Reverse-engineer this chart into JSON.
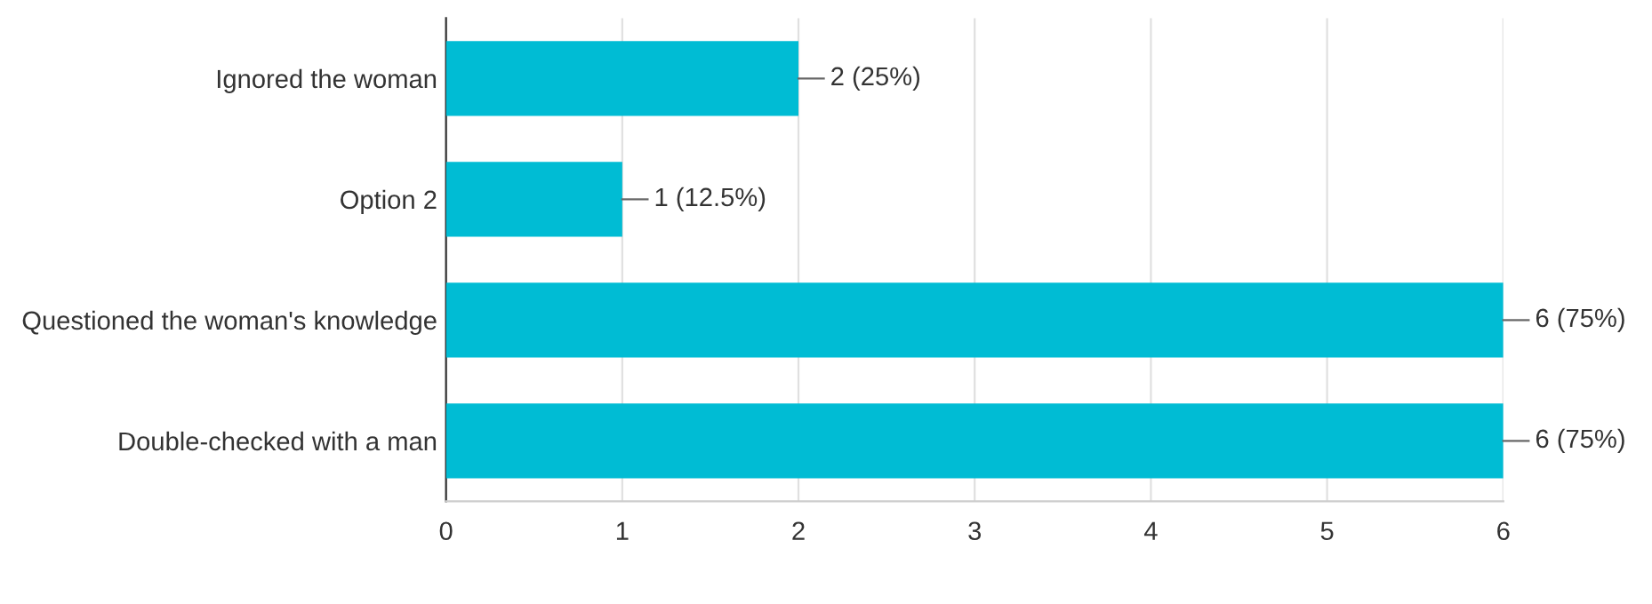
{
  "chart_data": {
    "type": "bar",
    "orientation": "horizontal",
    "categories": [
      "Ignored the woman",
      "Option 2",
      "Questioned the woman's knowledge",
      "Double-checked with a man"
    ],
    "values": [
      2,
      1,
      6,
      6
    ],
    "color": "#00bcd4",
    "value_labels": [
      "2 (25%)",
      "1 (12.5%)",
      "6 (75%)",
      "6 (75%)"
    ],
    "xlim": [
      0,
      6
    ],
    "xticks": [
      0,
      1,
      2,
      3,
      4,
      5,
      6
    ],
    "grid": "x",
    "legend": false
  }
}
